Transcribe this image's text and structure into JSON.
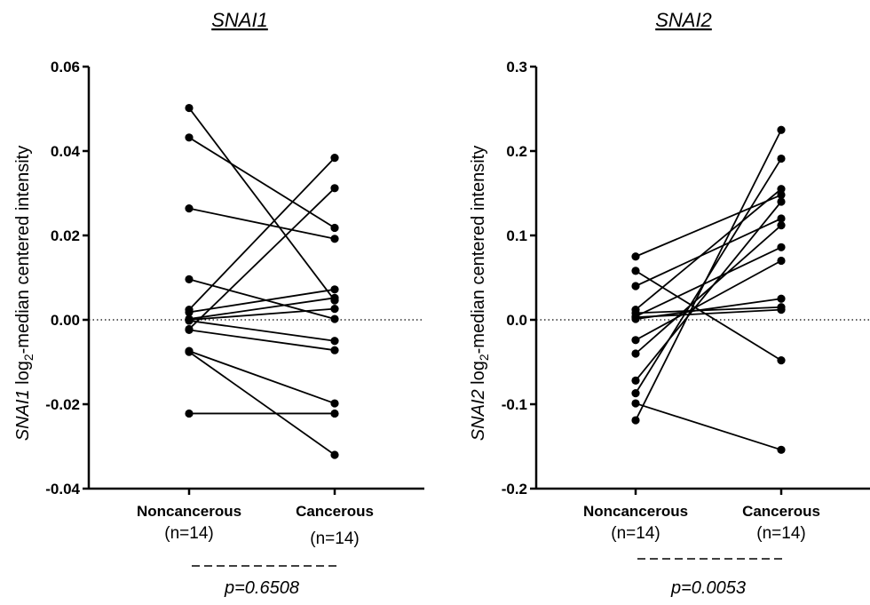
{
  "chart_data": [
    {
      "type": "scatter",
      "paired": true,
      "title": "SNAI1",
      "ylabel": {
        "gene": "SNAI1",
        "log": " log",
        "sub": "2",
        "rest": "-median centered intensity"
      },
      "categories": [
        "Noncancerous",
        "Cancerous"
      ],
      "category_n": [
        "(n=14)",
        "(n=14)"
      ],
      "ylim": [
        -0.04,
        0.06
      ],
      "yticks": [
        -0.04,
        -0.02,
        0.0,
        0.02,
        0.04,
        0.06
      ],
      "ytick_labels": [
        "-0.04",
        "-0.02",
        "0.00",
        "0.02",
        "0.04",
        "0.06"
      ],
      "reference_line": 0,
      "pvalue": "p=0.6508",
      "pairs": [
        {
          "noncancerous": 0.0502,
          "cancerous": 0.0046
        },
        {
          "noncancerous": 0.0432,
          "cancerous": 0.0218
        },
        {
          "noncancerous": 0.0264,
          "cancerous": 0.0192
        },
        {
          "noncancerous": 0.0096,
          "cancerous": 0.0002
        },
        {
          "noncancerous": 0.0024,
          "cancerous": 0.0384
        },
        {
          "noncancerous": 0.0018,
          "cancerous": 0.0072
        },
        {
          "noncancerous": 0.0002,
          "cancerous": 0.0052
        },
        {
          "noncancerous": -0.0002,
          "cancerous": -0.005
        },
        {
          "noncancerous": -0.0022,
          "cancerous": 0.0312
        },
        {
          "noncancerous": -0.0024,
          "cancerous": -0.0072
        },
        {
          "noncancerous": -0.0074,
          "cancerous": -0.0198
        },
        {
          "noncancerous": -0.0076,
          "cancerous": -0.032
        },
        {
          "noncancerous": -0.0222,
          "cancerous": -0.0222
        },
        {
          "noncancerous": 0.0,
          "cancerous": 0.0026
        }
      ]
    },
    {
      "type": "scatter",
      "paired": true,
      "title": "SNAI2",
      "ylabel": {
        "gene": "SNAI2",
        "log": " log",
        "sub": "2",
        "rest": "-median centered intensity"
      },
      "categories": [
        "Noncancerous",
        "Cancerous"
      ],
      "category_n": [
        "(n=14)",
        "(n=14)"
      ],
      "ylim": [
        -0.2,
        0.3
      ],
      "yticks": [
        -0.2,
        -0.1,
        0.0,
        0.1,
        0.2,
        0.3
      ],
      "ytick_labels": [
        "-0.2",
        "-0.1",
        "0.0",
        "0.1",
        "0.2",
        "0.3"
      ],
      "reference_line": 0,
      "pvalue": "p=0.0053",
      "pairs": [
        {
          "noncancerous": 0.075,
          "cancerous": 0.148
        },
        {
          "noncancerous": 0.058,
          "cancerous": -0.048
        },
        {
          "noncancerous": 0.04,
          "cancerous": 0.12
        },
        {
          "noncancerous": 0.012,
          "cancerous": 0.155
        },
        {
          "noncancerous": 0.008,
          "cancerous": 0.015
        },
        {
          "noncancerous": 0.004,
          "cancerous": 0.086
        },
        {
          "noncancerous": 0.001,
          "cancerous": 0.025
        },
        {
          "noncancerous": -0.024,
          "cancerous": 0.07
        },
        {
          "noncancerous": -0.04,
          "cancerous": 0.112
        },
        {
          "noncancerous": -0.072,
          "cancerous": 0.14
        },
        {
          "noncancerous": -0.087,
          "cancerous": 0.191
        },
        {
          "noncancerous": -0.099,
          "cancerous": -0.154
        },
        {
          "noncancerous": -0.119,
          "cancerous": 0.225
        },
        {
          "noncancerous": 0.003,
          "cancerous": 0.012
        }
      ]
    }
  ]
}
